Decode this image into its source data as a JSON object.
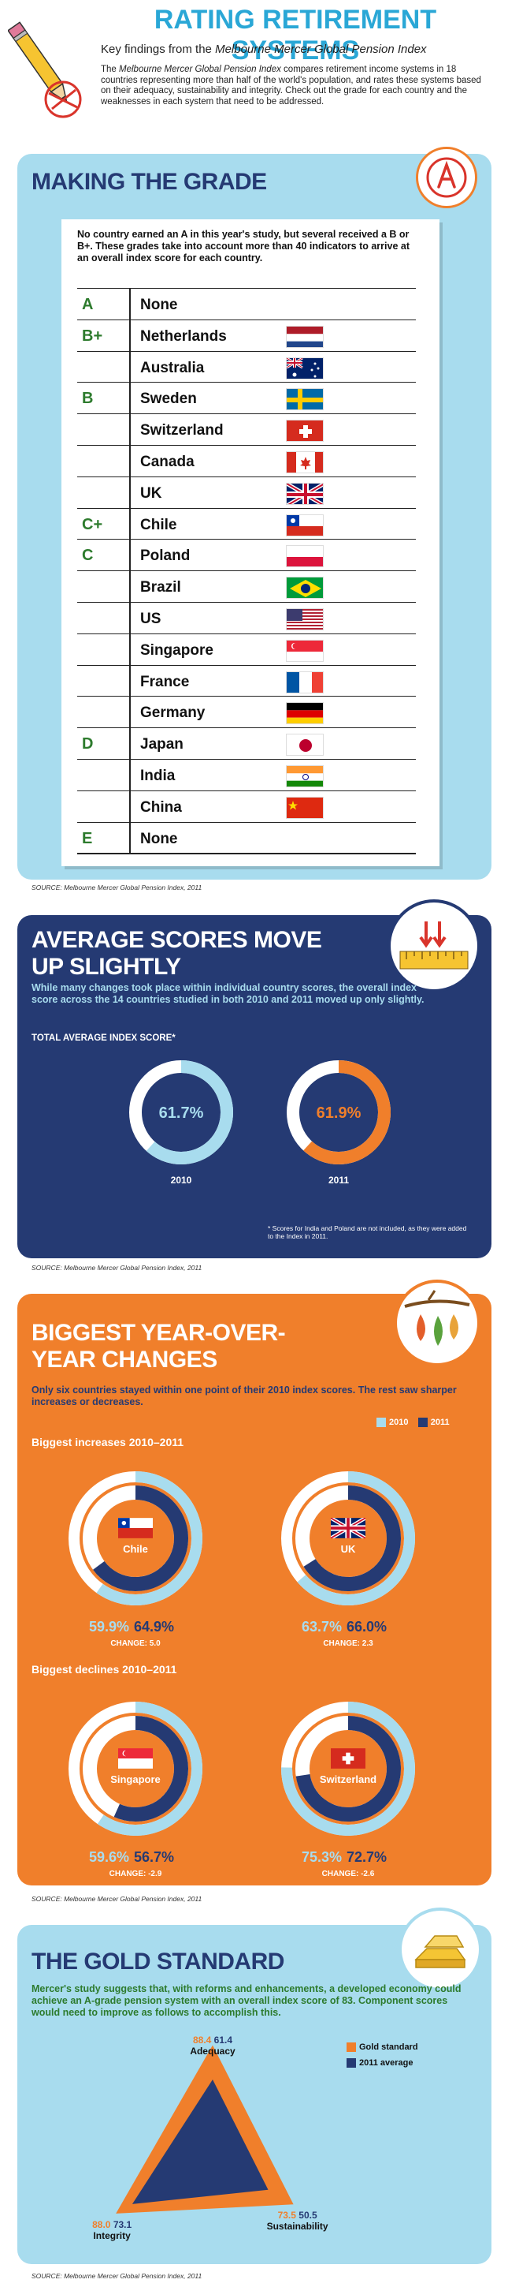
{
  "header": {
    "title": "RATING RETIREMENT SYSTEMS",
    "subtitle_prefix": "Key findings from the ",
    "subtitle_italic": "Melbourne Mercer Global Pension Index",
    "intro_prefix": "The ",
    "intro_italic": "Melbourne Mercer Global Pension Index",
    "intro_rest": " compares retirement income systems in 18 countries representing more than half of the world's population, and rates these systems based on their adequacy, sustainability and integrity. Check out the grade for each country and the weaknesses in each system that need to be addressed."
  },
  "grades": {
    "title": "MAKING THE GRADE",
    "intro": "No country earned an A in this year's study, but several received a B or B+. These grades take into account more than 40 indicators to arrive at an overall index score for each country.",
    "rows": [
      {
        "grade": "A",
        "country": "None",
        "flag": ""
      },
      {
        "grade": "B+",
        "country": "Netherlands",
        "flag": "nl"
      },
      {
        "grade": "",
        "country": "Australia",
        "flag": "au"
      },
      {
        "grade": "B",
        "country": "Sweden",
        "flag": "se"
      },
      {
        "grade": "",
        "country": "Switzerland",
        "flag": "ch"
      },
      {
        "grade": "",
        "country": "Canada",
        "flag": "ca"
      },
      {
        "grade": "",
        "country": "UK",
        "flag": "uk"
      },
      {
        "grade": "C+",
        "country": "Chile",
        "flag": "cl"
      },
      {
        "grade": "C",
        "country": "Poland",
        "flag": "pl"
      },
      {
        "grade": "",
        "country": "Brazil",
        "flag": "br"
      },
      {
        "grade": "",
        "country": "US",
        "flag": "us"
      },
      {
        "grade": "",
        "country": "Singapore",
        "flag": "sg"
      },
      {
        "grade": "",
        "country": "France",
        "flag": "fr"
      },
      {
        "grade": "",
        "country": "Germany",
        "flag": "de"
      },
      {
        "grade": "D",
        "country": "Japan",
        "flag": "jp"
      },
      {
        "grade": "",
        "country": "India",
        "flag": "in"
      },
      {
        "grade": "",
        "country": "China",
        "flag": "cn"
      },
      {
        "grade": "E",
        "country": "None",
        "flag": ""
      }
    ],
    "source": "SOURCE: Melbourne Mercer Global Pension Index, 2011"
  },
  "average": {
    "title_line1": "AVERAGE SCORES MOVE",
    "title_line2": "UP SLIGHTLY",
    "intro": "While many changes took place within individual country scores, the overall index score across the 14 countries studied in both 2010 and 2011 moved up only slightly.",
    "chart_title": "TOTAL AVERAGE INDEX SCORE*",
    "note": "* Scores for India and Poland are not included, as they were added to the Index in 2011.",
    "source": "SOURCE: Melbourne Mercer Global Pension Index, 2011"
  },
  "changes": {
    "title_line1": "BIGGEST YEAR-OVER-",
    "title_line2": "YEAR CHANGES",
    "intro": "Only six countries stayed within one point of their 2010 index scores. The rest saw sharper increases or decreases.",
    "legend_2010": "2010",
    "legend_2011": "2011",
    "increases_label": "Biggest increases 2010–2011",
    "declines_label": "Biggest declines 2010–2011",
    "source": "SOURCE: Melbourne Mercer Global Pension Index, 2011"
  },
  "gold": {
    "title": "THE GOLD STANDARD",
    "intro": "Mercer's study suggests that, with reforms and enhancements, a developed economy could achieve an A-grade pension system with an overall index score of 83. Component scores would need to improve as follows to accomplish this.",
    "legend_gold": "Gold standard",
    "legend_avg": "2011 average",
    "source": "SOURCE: Melbourne Mercer Global Pension Index, 2011"
  },
  "colors": {
    "light_blue": "#a8dcee",
    "navy": "#253a73",
    "orange": "#f07f2b",
    "green": "#2d7b2d"
  },
  "chart_data": [
    {
      "type": "pie",
      "title": "TOTAL AVERAGE INDEX SCORE*",
      "categories": [
        "2010",
        "2011"
      ],
      "values": [
        61.7,
        61.9
      ],
      "labels": [
        "61.7%",
        "61.9%"
      ],
      "ylim": [
        0,
        100
      ]
    },
    {
      "type": "pie",
      "title": "Biggest increases 2010–2011",
      "categories": [
        "Chile",
        "UK"
      ],
      "series": [
        {
          "name": "2010",
          "values": [
            59.9,
            63.7
          ],
          "labels": [
            "59.9%",
            "63.7%"
          ]
        },
        {
          "name": "2011",
          "values": [
            64.9,
            66.0
          ],
          "labels": [
            "64.9%",
            "66.0%"
          ]
        }
      ],
      "changes": [
        "CHANGE: 5.0",
        "CHANGE: 2.3"
      ]
    },
    {
      "type": "pie",
      "title": "Biggest declines 2010–2011",
      "categories": [
        "Singapore",
        "Switzerland"
      ],
      "series": [
        {
          "name": "2010",
          "values": [
            59.6,
            75.3
          ],
          "labels": [
            "59.6%",
            "75.3%"
          ]
        },
        {
          "name": "2011",
          "values": [
            56.7,
            72.7
          ],
          "labels": [
            "56.7%",
            "72.7%"
          ]
        }
      ],
      "changes": [
        "CHANGE: -2.9",
        "CHANGE: -2.6"
      ]
    },
    {
      "type": "radar",
      "categories": [
        "Adequacy",
        "Sustainability",
        "Integrity"
      ],
      "series": [
        {
          "name": "Gold standard",
          "values": [
            88.4,
            73.5,
            88.0
          ]
        },
        {
          "name": "2011 average",
          "values": [
            61.4,
            50.5,
            73.1
          ]
        }
      ]
    }
  ]
}
